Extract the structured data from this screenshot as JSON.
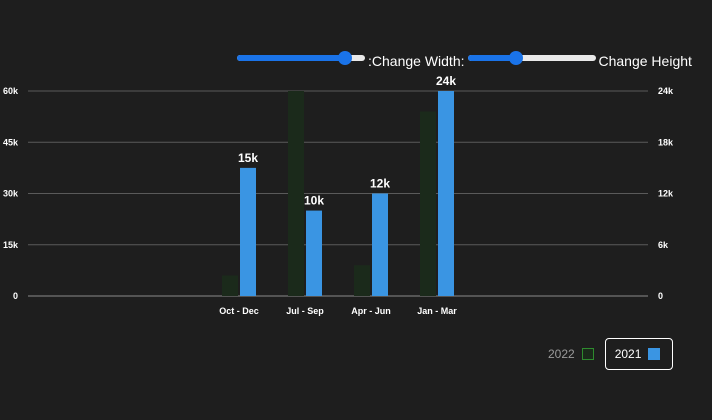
{
  "controls": {
    "width_label": ":Change Width:",
    "height_label": "Change Height",
    "width_value": 0.84,
    "height_value": 0.38
  },
  "legend": {
    "items": [
      {
        "label": "2022",
        "color": "#2e8b2e",
        "active": false
      },
      {
        "label": "2021",
        "color": "#3a95e3",
        "active": true
      }
    ]
  },
  "chart_data": {
    "type": "bar",
    "categories": [
      "Oct - Dec",
      "Jul - Sep",
      "Apr - Jun",
      "Jan - Mar"
    ],
    "series": [
      {
        "name": "2022",
        "values": [
          6000,
          60000,
          9000,
          54000
        ],
        "axis": "left",
        "color": "#1b2a1b",
        "visible": false
      },
      {
        "name": "2021",
        "values": [
          15000,
          10000,
          12000,
          24000
        ],
        "axis": "right",
        "color": "#3a95e3",
        "visible": true,
        "data_labels": [
          "15k",
          "10k",
          "12k",
          "24k"
        ]
      }
    ],
    "y_left": {
      "ticks": [
        0,
        15000,
        30000,
        45000,
        60000
      ],
      "tick_labels": [
        "0",
        "15k",
        "30k",
        "45k",
        "60k"
      ],
      "lim": [
        0,
        60000
      ]
    },
    "y_right": {
      "ticks": [
        0,
        6000,
        12000,
        18000,
        24000
      ],
      "tick_labels": [
        "0",
        "6k",
        "12k",
        "18k",
        "24k"
      ],
      "lim": [
        0,
        24000
      ]
    },
    "grid": true,
    "legend_position": "bottom-right"
  }
}
